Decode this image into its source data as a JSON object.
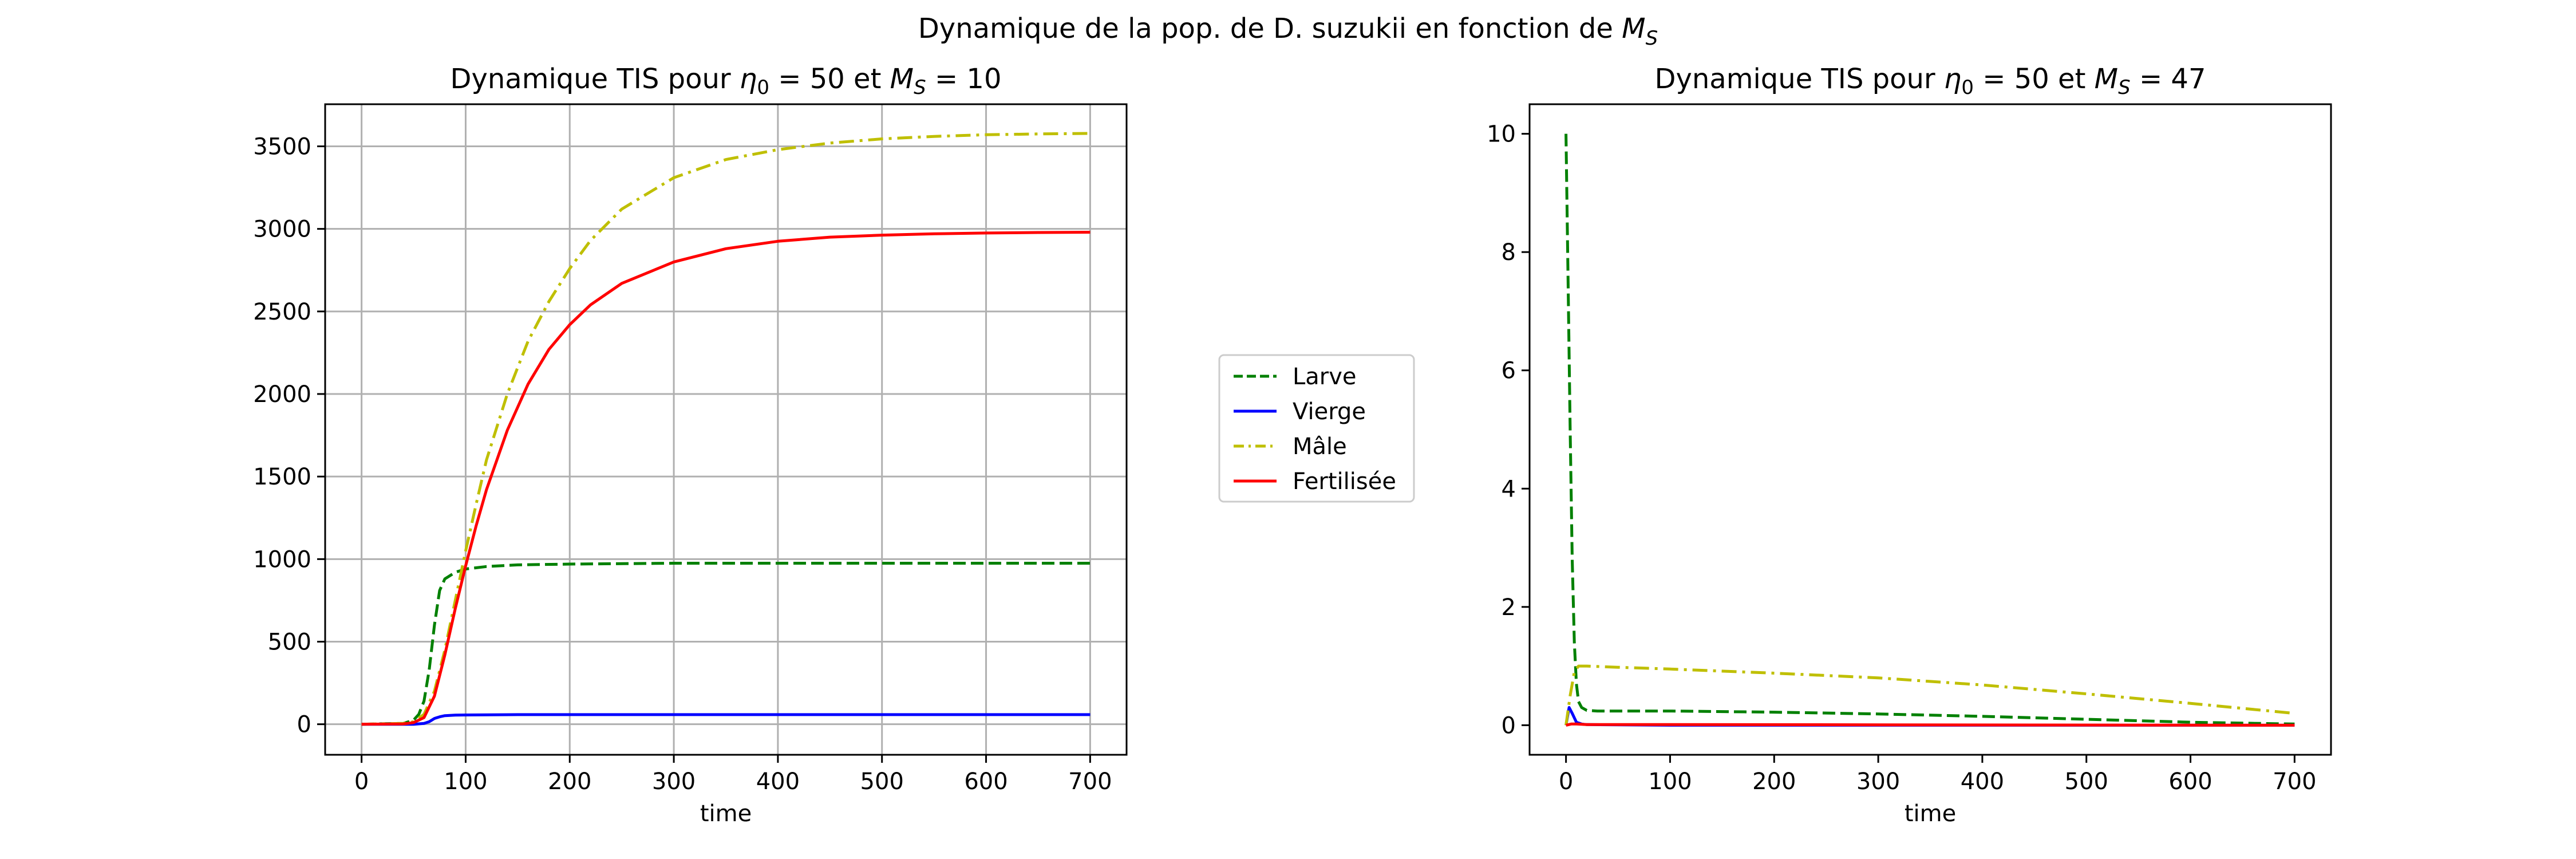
{
  "figure": {
    "suptitle_main": "Dynamique de la pop. de D. suzukii en fonction de ",
    "suptitle_math_base": "M",
    "suptitle_math_sub": "S"
  },
  "legend": {
    "placement": "center",
    "entries": [
      {
        "label": "Larve",
        "color": "#008000",
        "style": "dashed"
      },
      {
        "label": "Vierge",
        "color": "#0000ff",
        "style": "solid"
      },
      {
        "label": "Mâle",
        "color": "#bfbf00",
        "style": "dashdot"
      },
      {
        "label": "Fertilisée",
        "color": "#ff0000",
        "style": "solid"
      }
    ]
  },
  "chart_data": [
    {
      "type": "line",
      "title_prefix": "Dynamique TIS pour ",
      "title_eta": "η",
      "title_eta_sub": "0",
      "title_mid": " = 50 et ",
      "title_ms": "M",
      "title_ms_sub": "S",
      "title_suffix": " = 10",
      "xlabel": "time",
      "ylabel": "",
      "xlim": [
        -35,
        735
      ],
      "ylim": [
        -185,
        3755
      ],
      "xticks": [
        0,
        100,
        200,
        300,
        400,
        500,
        600,
        700
      ],
      "yticks": [
        0,
        500,
        1000,
        1500,
        2000,
        2500,
        3000,
        3500
      ],
      "grid": true,
      "series": [
        {
          "name": "Larve",
          "color": "#008000",
          "style": "dashed",
          "x": [
            0,
            40,
            50,
            55,
            60,
            65,
            70,
            75,
            80,
            90,
            100,
            120,
            150,
            200,
            300,
            400,
            500,
            600,
            700
          ],
          "y": [
            0,
            5,
            25,
            60,
            140,
            330,
            600,
            810,
            880,
            920,
            940,
            955,
            965,
            970,
            975,
            975,
            975,
            975,
            975
          ]
        },
        {
          "name": "Vierge",
          "color": "#0000ff",
          "style": "solid",
          "x": [
            0,
            50,
            60,
            65,
            70,
            75,
            80,
            90,
            100,
            150,
            200,
            300,
            400,
            500,
            600,
            700
          ],
          "y": [
            0,
            0,
            5,
            15,
            35,
            45,
            52,
            55,
            56,
            58,
            58,
            58,
            58,
            58,
            58,
            58
          ]
        },
        {
          "name": "Mâle",
          "color": "#bfbf00",
          "style": "dashdot",
          "x": [
            0,
            40,
            50,
            60,
            70,
            80,
            90,
            100,
            110,
            120,
            140,
            160,
            180,
            200,
            220,
            250,
            300,
            350,
            400,
            450,
            500,
            550,
            600,
            650,
            700
          ],
          "y": [
            0,
            5,
            15,
            60,
            200,
            450,
            750,
            1050,
            1330,
            1600,
            2000,
            2320,
            2560,
            2760,
            2930,
            3120,
            3310,
            3420,
            3480,
            3520,
            3545,
            3560,
            3570,
            3575,
            3578
          ]
        },
        {
          "name": "Fertilisée",
          "color": "#ff0000",
          "style": "solid",
          "x": [
            0,
            40,
            50,
            60,
            70,
            80,
            90,
            100,
            110,
            120,
            140,
            160,
            180,
            200,
            220,
            250,
            300,
            350,
            400,
            450,
            500,
            550,
            600,
            650,
            700
          ],
          "y": [
            0,
            2,
            10,
            40,
            170,
            420,
            700,
            960,
            1200,
            1420,
            1780,
            2060,
            2270,
            2420,
            2540,
            2670,
            2800,
            2880,
            2925,
            2950,
            2962,
            2970,
            2975,
            2978,
            2980
          ]
        }
      ]
    },
    {
      "type": "line",
      "title_prefix": "Dynamique TIS pour ",
      "title_eta": "η",
      "title_eta_sub": "0",
      "title_mid": " = 50 et ",
      "title_ms": "M",
      "title_ms_sub": "S",
      "title_suffix": " = 47",
      "xlabel": "time",
      "ylabel": "",
      "xlim": [
        -35,
        735
      ],
      "ylim": [
        -0.5,
        10.5
      ],
      "xticks": [
        0,
        100,
        200,
        300,
        400,
        500,
        600,
        700
      ],
      "yticks": [
        0,
        2,
        4,
        6,
        8,
        10
      ],
      "grid": false,
      "series": [
        {
          "name": "Larve",
          "color": "#008000",
          "style": "dashed",
          "x": [
            0,
            2,
            4,
            6,
            8,
            10,
            12,
            15,
            20,
            30,
            50,
            100,
            200,
            300,
            400,
            500,
            600,
            700
          ],
          "y": [
            10,
            7.5,
            5,
            2.8,
            1.4,
            0.7,
            0.4,
            0.3,
            0.25,
            0.24,
            0.24,
            0.24,
            0.22,
            0.19,
            0.15,
            0.1,
            0.05,
            0.02
          ]
        },
        {
          "name": "Vierge",
          "color": "#0000ff",
          "style": "solid",
          "x": [
            0,
            3,
            6,
            10,
            15,
            20,
            100,
            700
          ],
          "y": [
            0,
            0.3,
            0.2,
            0.05,
            0.02,
            0.01,
            0,
            0
          ]
        },
        {
          "name": "Mâle",
          "color": "#bfbf00",
          "style": "dashdot",
          "x": [
            0,
            4,
            8,
            12,
            20,
            50,
            100,
            200,
            300,
            400,
            500,
            600,
            700
          ],
          "y": [
            0,
            0.5,
            0.9,
            1.0,
            1.0,
            0.98,
            0.95,
            0.88,
            0.8,
            0.68,
            0.53,
            0.37,
            0.2
          ]
        },
        {
          "name": "Fertilisée",
          "color": "#ff0000",
          "style": "solid",
          "x": [
            0,
            5,
            10,
            20,
            100,
            700
          ],
          "y": [
            0,
            0.02,
            0.02,
            0.01,
            0.01,
            0
          ]
        }
      ]
    }
  ]
}
